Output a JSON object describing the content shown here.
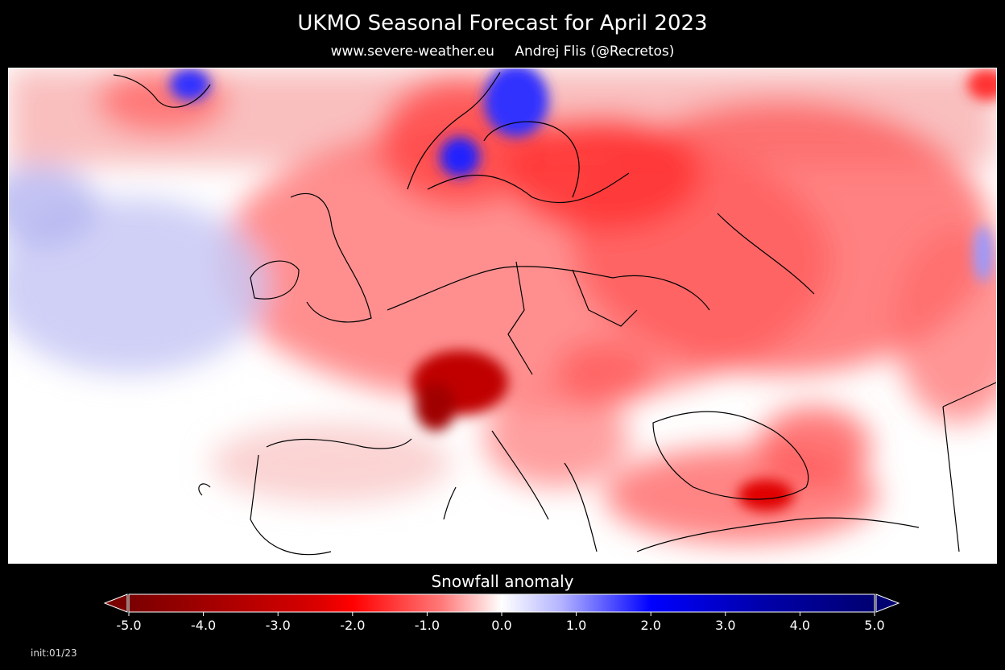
{
  "header": {
    "title": "UKMO Seasonal Forecast for April 2023",
    "website": "www.severe-weather.eu",
    "author": "Andrej Flis (@Recretos)"
  },
  "legend": {
    "title": "Snowfall anomaly",
    "ticks": [
      "-5.0",
      "-4.0",
      "-3.0",
      "-2.0",
      "-1.0",
      "0.0",
      "1.0",
      "2.0",
      "3.0",
      "4.0",
      "5.0"
    ],
    "min": -5.0,
    "max": 5.0,
    "colors": {
      "deep_red": "#7a0000",
      "red": "#ff0000",
      "white": "#ffffff",
      "blue": "#0000ff",
      "deep_blue": "#000070"
    }
  },
  "footer": {
    "init": "init:01/23"
  },
  "map": {
    "region": "Europe",
    "dominant_anomaly": "negative (red) across most of Europe",
    "background_color": "#ffffff",
    "border_color": "#000000"
  }
}
